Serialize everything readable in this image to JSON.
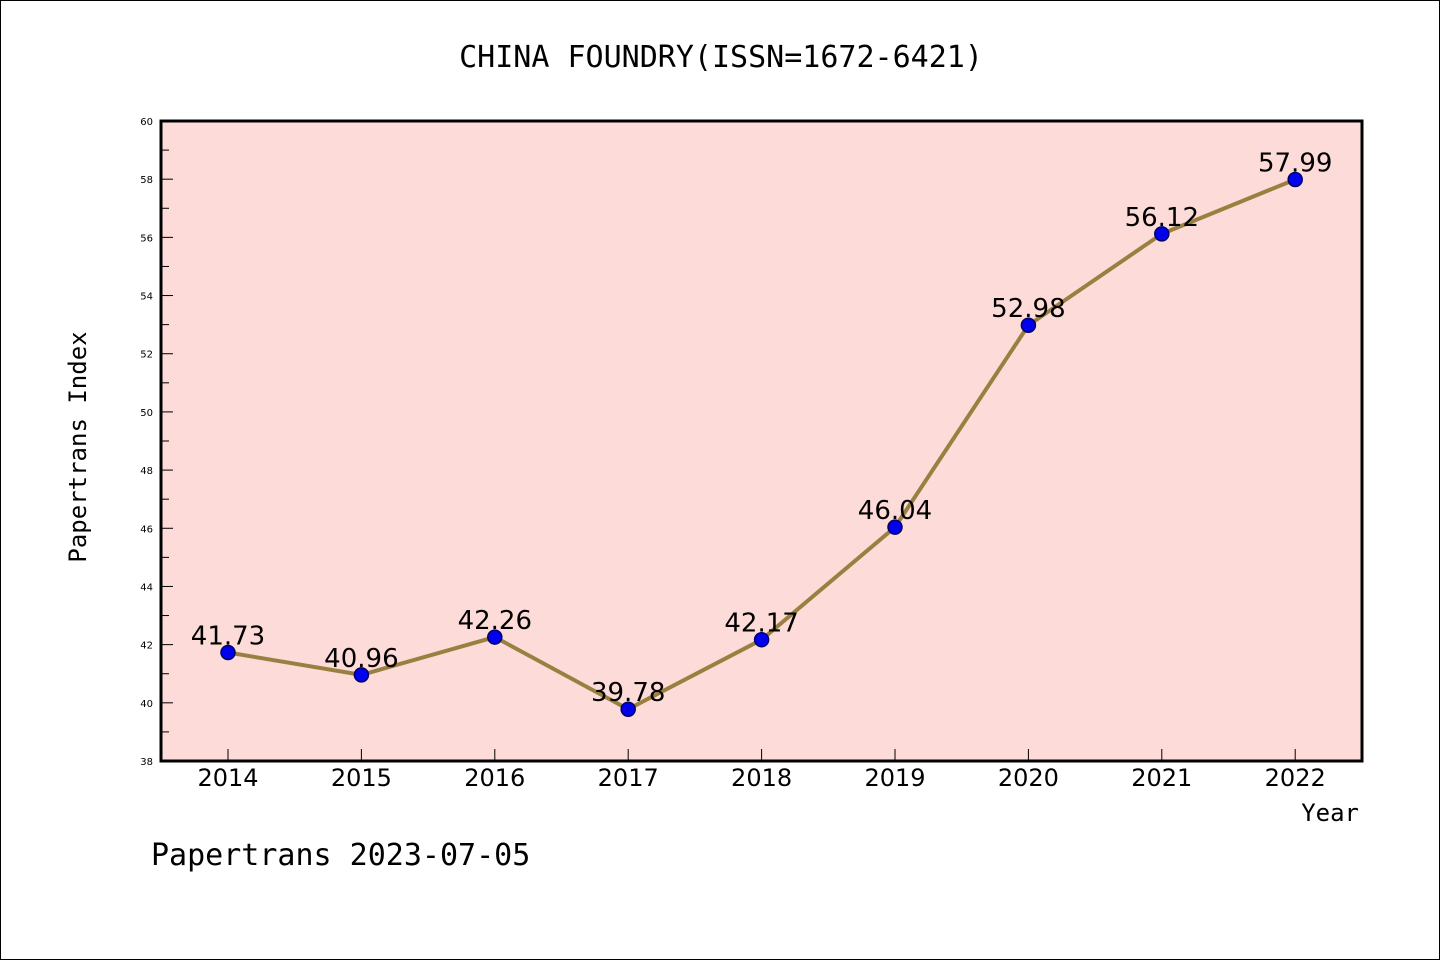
{
  "chart_data": {
    "type": "line",
    "title": "CHINA FOUNDRY(ISSN=1672-6421)",
    "xlabel": "Year",
    "ylabel": "Papertrans Index",
    "categories": [
      "2014",
      "2015",
      "2016",
      "2017",
      "2018",
      "2019",
      "2020",
      "2021",
      "2022"
    ],
    "values": [
      41.73,
      40.96,
      42.26,
      39.78,
      42.17,
      46.04,
      52.98,
      56.12,
      57.99
    ],
    "data_labels": [
      "41.73",
      "40.96",
      "42.26",
      "39.78",
      "42.17",
      "46.04",
      "52.98",
      "56.12",
      "57.99"
    ],
    "ylim": [
      38,
      60
    ],
    "yticks": [
      "38",
      "40",
      "42",
      "44",
      "46",
      "48",
      "50",
      "52",
      "54",
      "56",
      "58",
      "60"
    ],
    "grid": false,
    "colors": {
      "plot_background": "#fddbd8",
      "line": "#9a8040",
      "marker": "#0000ee",
      "marker_edge": "#000066"
    }
  },
  "footer": "Papertrans 2023-07-05"
}
